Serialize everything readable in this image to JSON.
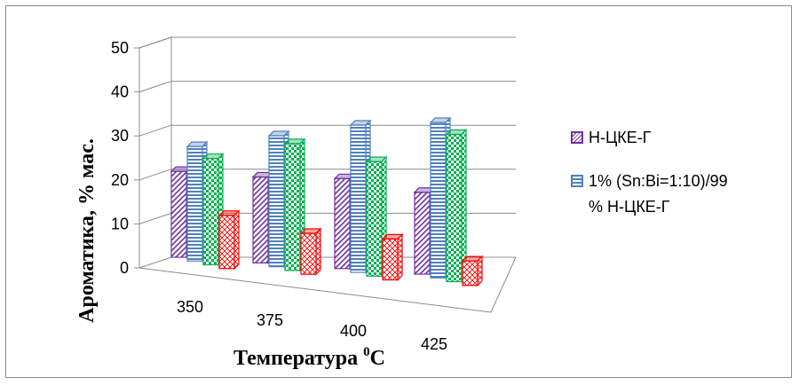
{
  "chart_data": {
    "type": "bar",
    "title": "",
    "xlabel": "Температура",
    "xlabel_unit": "0C",
    "ylabel": "Ароматика, % мас.",
    "ylim": [
      0,
      50
    ],
    "yticks": [
      "0",
      "10",
      "20",
      "30",
      "40",
      "50"
    ],
    "categories": [
      "350",
      "375",
      "400",
      "425"
    ],
    "series": [
      {
        "name": "Н-ЦКЕ-Г",
        "color": "#7030a0",
        "pattern": "diagonal",
        "values": [
          21,
          21,
          22,
          20
        ]
      },
      {
        "name": "1% (Sn:Bi=1:10)/99 % Н-ЦКЕ-Г",
        "color": "#4f81bd",
        "pattern": "horizontal",
        "values": [
          28,
          32,
          36,
          38
        ]
      },
      {
        "name": "",
        "color": "#00b050",
        "pattern": "checker",
        "values": [
          26,
          31,
          28,
          36
        ]
      },
      {
        "name": "",
        "color": "#ff0000",
        "pattern": "diamond",
        "values": [
          13,
          10,
          10,
          6
        ]
      }
    ],
    "legend_position": "right",
    "grid": true
  },
  "legend": {
    "items": [
      {
        "label": "Н-ЦКЕ-Г",
        "color": "#7030a0"
      },
      {
        "label": "1% (Sn:Bi=1:10)/99",
        "label2": "% Н-ЦКЕ-Г",
        "color": "#4f81bd"
      }
    ]
  }
}
